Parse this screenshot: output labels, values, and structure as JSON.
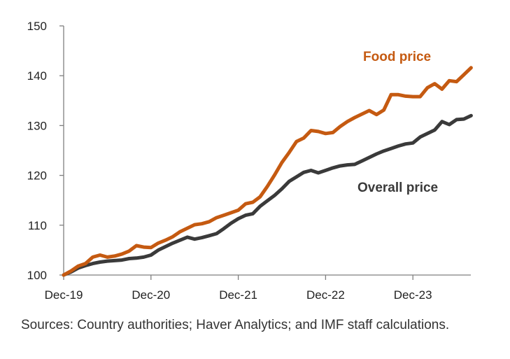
{
  "chart_data": {
    "type": "line",
    "title": "",
    "xlabel": "",
    "ylabel": "",
    "x_start": "Dec-19",
    "months": 56,
    "ylim": [
      100,
      150
    ],
    "yticks": [
      100,
      110,
      120,
      130,
      140,
      150
    ],
    "x_tick_labels": [
      "Dec-19",
      "Dec-20",
      "Dec-21",
      "Dec-22",
      "Dec-23"
    ],
    "x_tick_months": [
      0,
      12,
      24,
      36,
      48
    ],
    "grid": false,
    "legend": "inline labels",
    "series": [
      {
        "name": "Food price",
        "color": "#c55a11",
        "values": [
          100,
          100.8,
          101.8,
          102.3,
          103.6,
          104.0,
          103.6,
          103.8,
          104.2,
          104.8,
          105.9,
          105.6,
          105.5,
          106.4,
          107.0,
          107.7,
          108.7,
          109.4,
          110.1,
          110.3,
          110.7,
          111.5,
          112.0,
          112.5,
          113.0,
          114.3,
          114.6,
          115.7,
          117.8,
          120.1,
          122.6,
          124.6,
          126.8,
          127.5,
          129.0,
          128.8,
          128.4,
          128.6,
          129.8,
          130.8,
          131.6,
          132.3,
          133.0,
          132.2,
          133.1,
          136.2,
          136.2,
          135.9,
          135.8,
          135.8,
          137.6,
          138.4,
          137.3,
          139.0,
          138.8,
          140.2,
          141.6
        ],
        "label_position": "above-right"
      },
      {
        "name": "Overall price",
        "color": "#3a3a3a",
        "values": [
          100,
          100.6,
          101.4,
          101.9,
          102.3,
          102.6,
          102.8,
          102.9,
          103.0,
          103.3,
          103.4,
          103.6,
          104.0,
          105.0,
          105.7,
          106.4,
          107.0,
          107.6,
          107.2,
          107.5,
          107.9,
          108.3,
          109.3,
          110.4,
          111.3,
          112.0,
          112.3,
          113.8,
          114.9,
          116.0,
          117.3,
          118.8,
          119.7,
          120.6,
          121.0,
          120.5,
          121.0,
          121.5,
          121.9,
          122.1,
          122.2,
          122.9,
          123.6,
          124.3,
          124.9,
          125.4,
          125.9,
          126.3,
          126.5,
          127.7,
          128.4,
          129.1,
          130.8,
          130.2,
          131.2,
          131.3,
          132.0
        ],
        "label_position": "below-right"
      }
    ]
  },
  "footer": {
    "source_note": "Sources: Country authorities; Haver Analytics; and IMF staff calculations."
  }
}
